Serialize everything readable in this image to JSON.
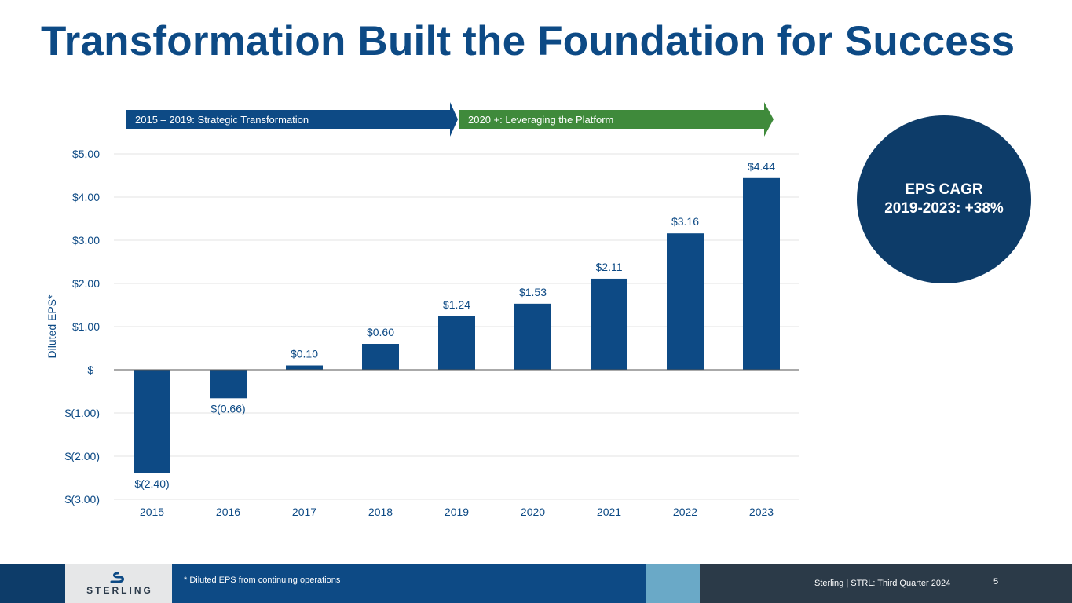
{
  "slide": {
    "title": "Transformation Built the Foundation for Success"
  },
  "chart_data": {
    "type": "bar",
    "title": "",
    "xlabel": "",
    "ylabel": "Diluted EPS*",
    "categories": [
      "2015",
      "2016",
      "2017",
      "2018",
      "2019",
      "2020",
      "2021",
      "2022",
      "2023"
    ],
    "values": [
      -2.4,
      -0.66,
      0.1,
      0.6,
      1.24,
      1.53,
      2.11,
      3.16,
      4.44
    ],
    "data_labels": [
      "$(2.40)",
      "$(0.66)",
      "$0.10",
      "$0.60",
      "$1.24",
      "$1.53",
      "$2.11",
      "$3.16",
      "$4.44"
    ],
    "ylim": [
      -3,
      5
    ],
    "y_ticks": [
      5,
      4,
      3,
      2,
      1,
      0,
      -1,
      -2,
      -3
    ],
    "y_tick_labels": [
      "$5.00",
      "$4.00",
      "$3.00",
      "$2.00",
      "$1.00",
      "$–",
      "$(1.00)",
      "$(2.00)",
      "$(3.00)"
    ],
    "grid": true,
    "bar_color": "#0d4a85",
    "phases": [
      {
        "label": "2015 – 2019: Strategic Transformation",
        "color": "#0d4a85"
      },
      {
        "label": "2020 +: Leveraging the Platform",
        "color": "#3f8a3b"
      }
    ]
  },
  "callout": {
    "line1": "EPS CAGR",
    "line2": "2019-2023: +38%"
  },
  "footer": {
    "logo_text": "STERLING",
    "note": "* Diluted EPS from continuing operations",
    "info": "Sterling | STRL:  Third Quarter 2024",
    "page_number": "5"
  },
  "colors": {
    "title": "#0d4a85",
    "circle": "#0d3c69",
    "tick_text": "#0d4a85",
    "footer_dark": "#0d3c69",
    "footer_mid": "#0d4a85",
    "footer_light": "#6aa9c7",
    "footer_right": "#2b3a48"
  }
}
